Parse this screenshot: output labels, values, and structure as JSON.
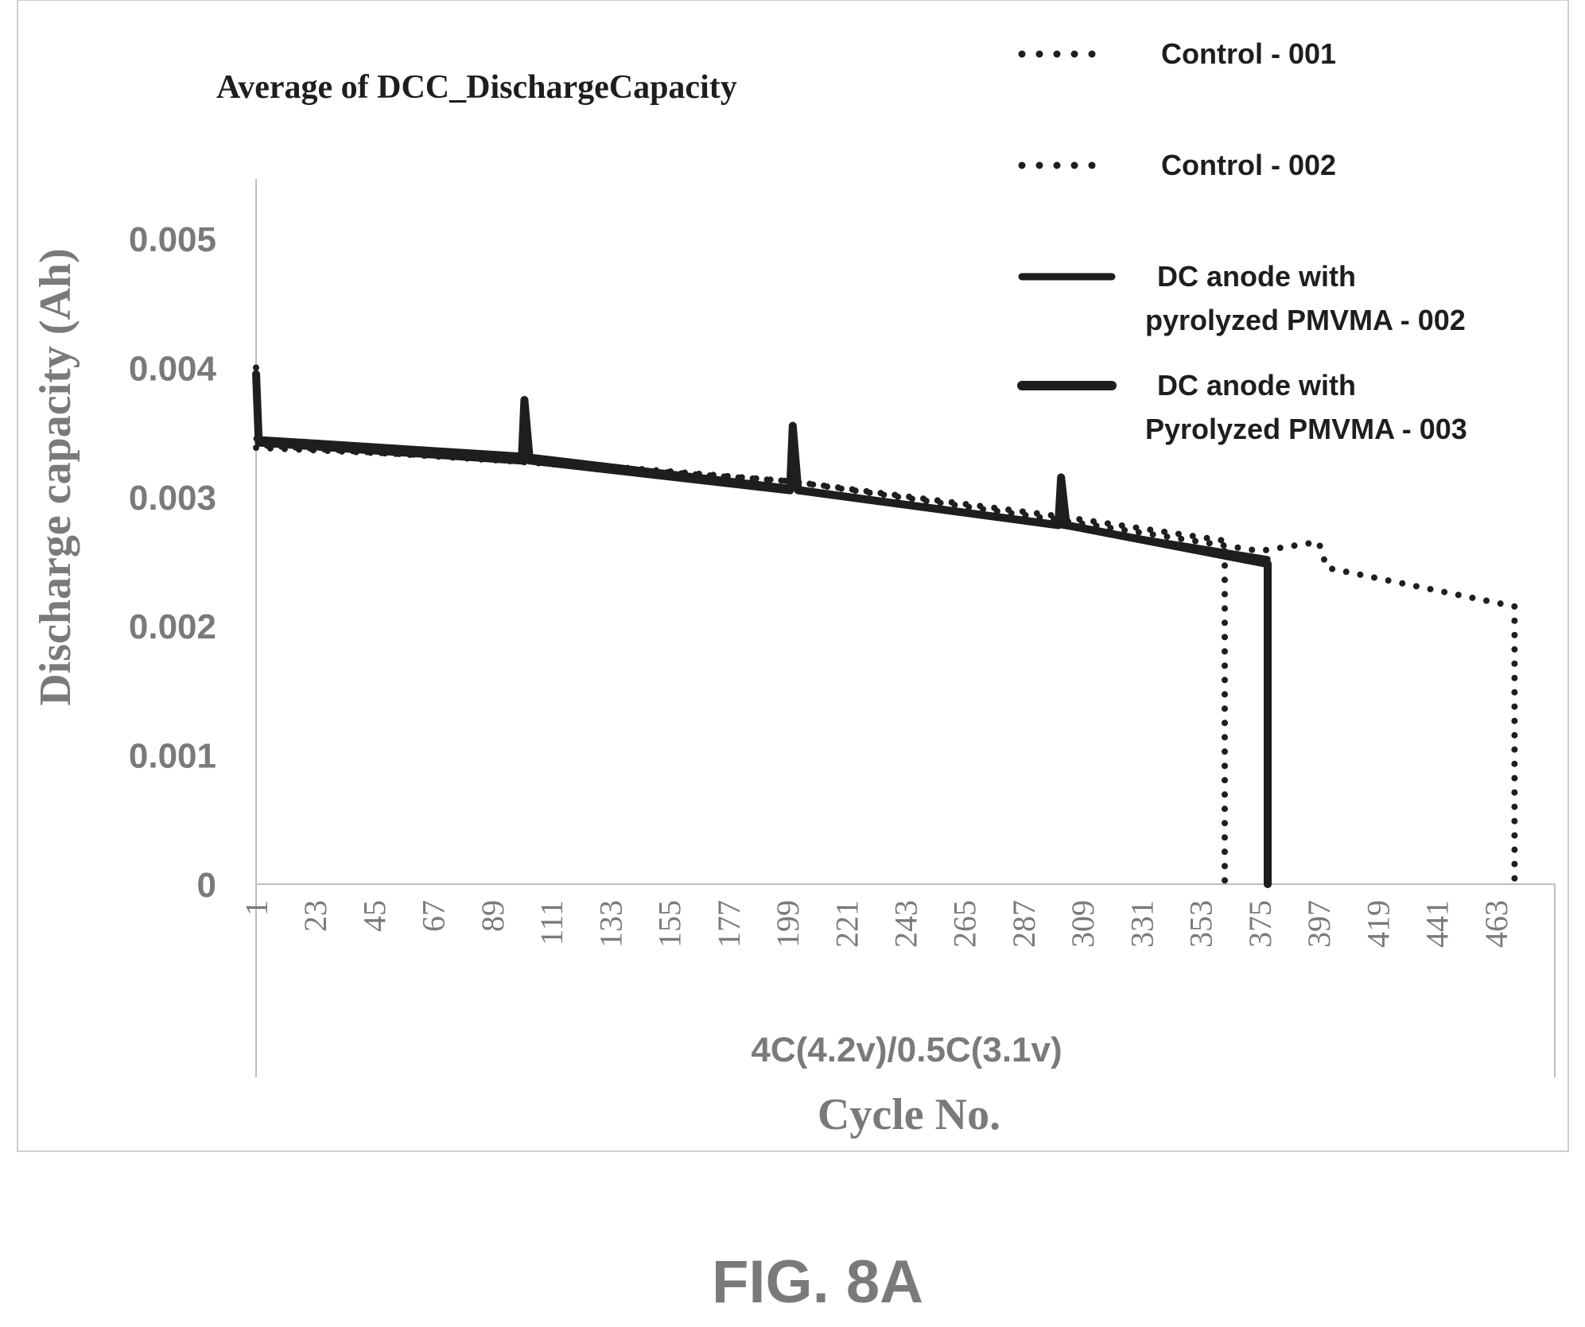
{
  "figure_label": "FIG. 8A",
  "colors": {
    "axis_text": "#7a7a7a",
    "series": "#1e1e1e",
    "title": "#1e1e1e",
    "frame": "#bdbdbd"
  },
  "chart_data": {
    "type": "line",
    "title": "Average of DCC_DischargeCapacity",
    "xlabel": "Cycle No.",
    "x_sublabel": "4C(4.2v)/0.5C(3.1v)",
    "ylabel": "Discharge capacity (Ah)",
    "ylim": [
      0,
      0.005
    ],
    "yticks": [
      "0",
      "0.001",
      "0.002",
      "0.003",
      "0.004",
      "0.005"
    ],
    "xlim": [
      1,
      485
    ],
    "xticks": [
      "1",
      "23",
      "45",
      "67",
      "89",
      "111",
      "133",
      "155",
      "177",
      "199",
      "221",
      "243",
      "265",
      "287",
      "309",
      "331",
      "353",
      "375",
      "397",
      "419",
      "441",
      "463"
    ],
    "grid": false,
    "legend_position": "top-right",
    "series": [
      {
        "name": "Control - 001",
        "style": "dotted",
        "points": [
          [
            1,
            0.004
          ],
          [
            2,
            0.0034
          ],
          [
            100,
            0.00327
          ],
          [
            200,
            0.00312
          ],
          [
            300,
            0.00285
          ],
          [
            362,
            0.00266
          ],
          [
            362,
            0.00245
          ],
          [
            362,
            0
          ]
        ]
      },
      {
        "name": "Control - 002",
        "style": "dotted",
        "points": [
          [
            1,
            0.00338
          ],
          [
            100,
            0.00329
          ],
          [
            200,
            0.00312
          ],
          [
            300,
            0.00282
          ],
          [
            375,
            0.00258
          ],
          [
            397,
            0.00265
          ],
          [
            400,
            0.00245
          ],
          [
            470,
            0.00215
          ],
          [
            470,
            0
          ]
        ]
      },
      {
        "name": "DC anode with pyrolyzed PMVMA - 002",
        "style": "solid",
        "points": [
          [
            1,
            0.00345
          ],
          [
            100,
            0.00332
          ],
          [
            200,
            0.00307
          ],
          [
            300,
            0.00278
          ],
          [
            378,
            0.00252
          ],
          [
            378,
            0
          ]
        ]
      },
      {
        "name": "DC anode with Pyrolyzed PMVMA - 003",
        "style": "solid-thick",
        "points": [
          [
            1,
            0.00395
          ],
          [
            2,
            0.00342
          ],
          [
            100,
            0.00328
          ],
          [
            101,
            0.00375
          ],
          [
            103,
            0.00328
          ],
          [
            200,
            0.00305
          ],
          [
            201,
            0.00355
          ],
          [
            203,
            0.00305
          ],
          [
            300,
            0.00278
          ],
          [
            301,
            0.00315
          ],
          [
            303,
            0.00278
          ],
          [
            378,
            0.00248
          ],
          [
            378,
            0
          ]
        ]
      }
    ]
  }
}
